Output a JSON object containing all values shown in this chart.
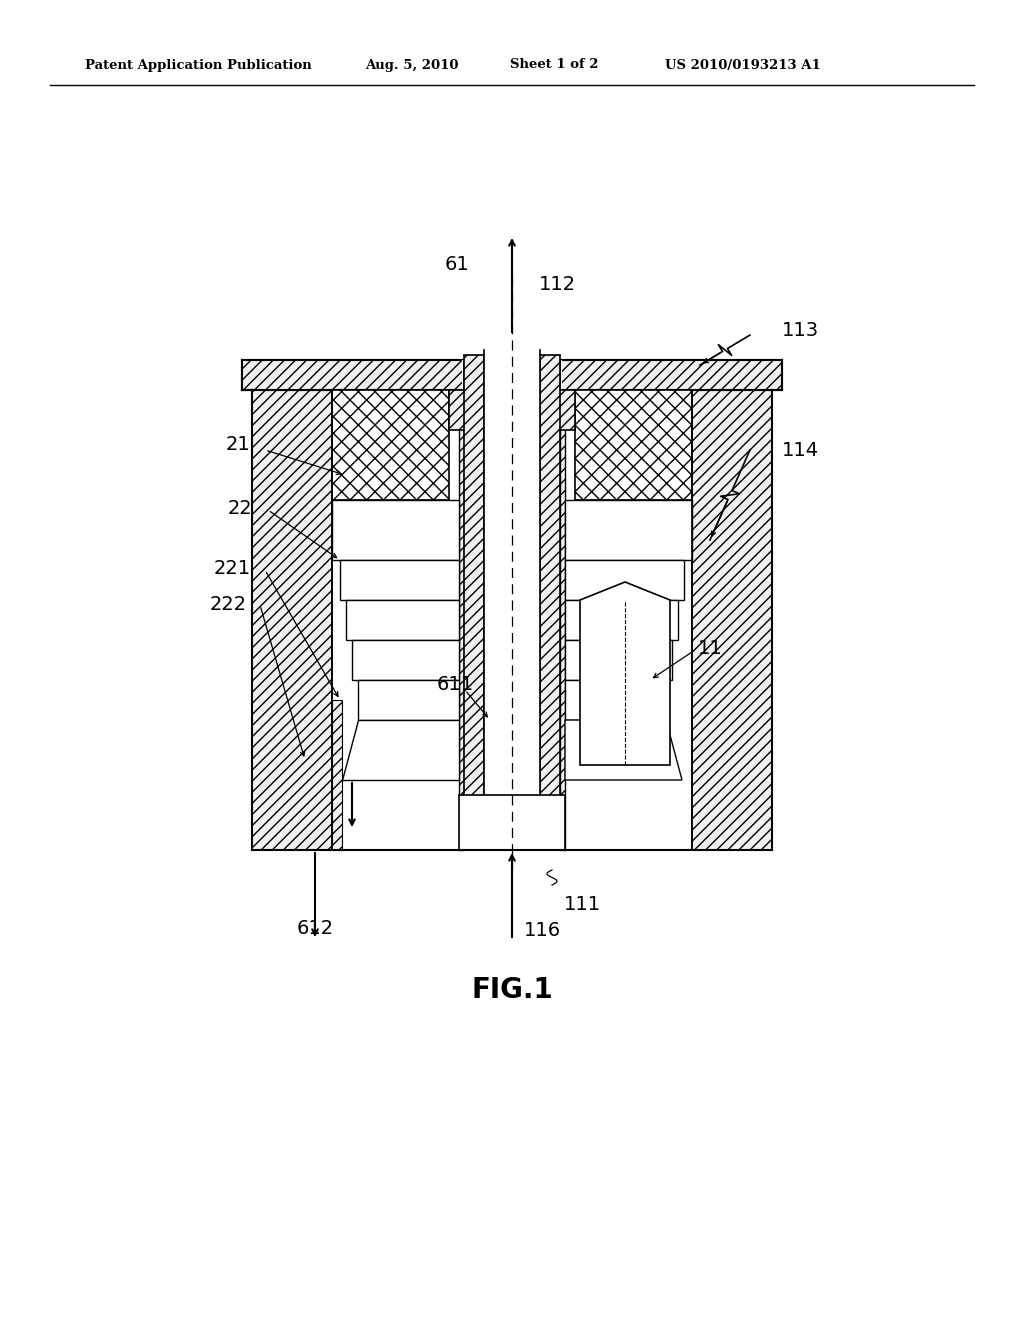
{
  "bg_color": "#ffffff",
  "header_text1": "Patent Application Publication",
  "header_text2": "Aug. 5, 2010",
  "header_text3": "Sheet 1 of 2",
  "header_text4": "US 2010/0193213 A1",
  "figure_label": "FIG.1",
  "fig_width": 10.24,
  "fig_height": 13.2,
  "dpi": 100
}
